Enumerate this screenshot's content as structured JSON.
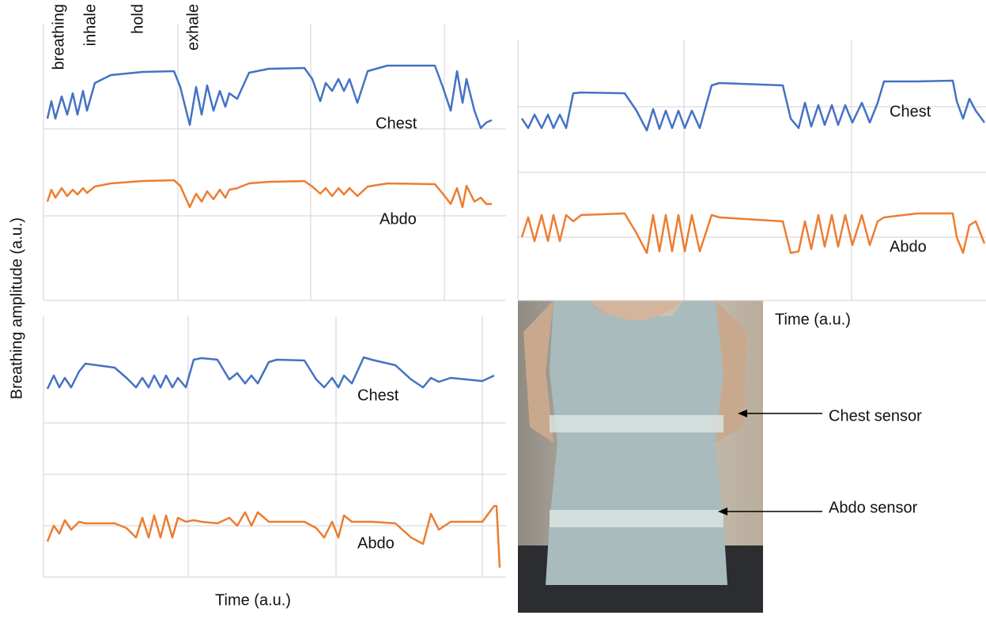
{
  "chart_data": [
    {
      "type": "line",
      "y_label": "Breathing amplitude (a.u.)",
      "annotations": [
        "breathing",
        "inhale",
        "hold",
        "exhale"
      ],
      "xlim": [
        0,
        585
      ],
      "ylim": [
        0,
        350
      ],
      "x": [
        5,
        10,
        15,
        23,
        30,
        37,
        43,
        50,
        55,
        65,
        85,
        125,
        165,
        173,
        185,
        193,
        200,
        207,
        215,
        223,
        230,
        235,
        245,
        260,
        285,
        330,
        340,
        350,
        357,
        365,
        373,
        380,
        387,
        397,
        410,
        435,
        495,
        505,
        515,
        523,
        530,
        535,
        545,
        553,
        560,
        567
      ],
      "series": [
        {
          "name": "Chest",
          "color": "#4472c4",
          "values": [
            230,
            252,
            230,
            258,
            235,
            262,
            235,
            265,
            240,
            275,
            285,
            289,
            290,
            270,
            222,
            270,
            235,
            272,
            240,
            265,
            245,
            262,
            255,
            288,
            293,
            294,
            280,
            252,
            275,
            265,
            280,
            265,
            280,
            250,
            290,
            297,
            297,
            270,
            240,
            290,
            250,
            280,
            240,
            218,
            225,
            228
          ]
        },
        {
          "name": "Abdo",
          "color": "#ed7d31",
          "values": [
            125,
            140,
            130,
            142,
            132,
            140,
            134,
            142,
            136,
            144,
            148,
            151,
            152,
            145,
            118,
            135,
            125,
            138,
            128,
            140,
            130,
            140,
            142,
            148,
            150,
            151,
            144,
            135,
            142,
            132,
            142,
            134,
            142,
            132,
            144,
            148,
            147,
            135,
            122,
            142,
            118,
            145,
            125,
            130,
            122,
            122
          ]
        }
      ]
    },
    {
      "type": "line",
      "x_label": "Time (a.u.)",
      "xlim": [
        0,
        592
      ],
      "ylim": [
        0,
        330
      ],
      "x": [
        5,
        13,
        21,
        30,
        38,
        45,
        53,
        61,
        70,
        80,
        135,
        150,
        163,
        171,
        179,
        187,
        195,
        203,
        211,
        220,
        230,
        245,
        255,
        335,
        345,
        355,
        363,
        371,
        380,
        388,
        397,
        405,
        414,
        423,
        435,
        445,
        455,
        463,
        505,
        550,
        555,
        563,
        571,
        579,
        590
      ],
      "series": [
        {
          "name": "Chest",
          "color": "#4472c4",
          "values": [
            230,
            218,
            235,
            218,
            235,
            218,
            235,
            218,
            262,
            263,
            262,
            240,
            215,
            242,
            217,
            240,
            218,
            240,
            218,
            240,
            218,
            272,
            275,
            272,
            230,
            218,
            250,
            220,
            247,
            222,
            247,
            222,
            247,
            225,
            250,
            225,
            250,
            277,
            277,
            278,
            252,
            230,
            255,
            240,
            225
          ]
        },
        {
          "name": "Abdo",
          "color": "#ed7d31",
          "values": [
            80,
            105,
            75,
            108,
            75,
            108,
            75,
            108,
            100,
            108,
            110,
            85,
            60,
            108,
            62,
            108,
            62,
            108,
            62,
            108,
            62,
            108,
            105,
            100,
            60,
            62,
            100,
            65,
            108,
            68,
            108,
            68,
            108,
            70,
            108,
            70,
            100,
            105,
            110,
            110,
            80,
            60,
            95,
            100,
            72
          ]
        }
      ]
    },
    {
      "type": "line",
      "x_label": "Time (a.u.)",
      "xlim": [
        0,
        585
      ],
      "ylim": [
        0,
        330
      ],
      "x": [
        5,
        13,
        20,
        27,
        35,
        45,
        53,
        90,
        105,
        117,
        125,
        133,
        140,
        148,
        155,
        163,
        170,
        180,
        190,
        200,
        220,
        235,
        245,
        255,
        263,
        271,
        285,
        295,
        330,
        345,
        355,
        365,
        373,
        380,
        390,
        405,
        415,
        445,
        465,
        480,
        490,
        500,
        515,
        535,
        555,
        570,
        573,
        577
      ],
      "series": [
        {
          "name": "Chest",
          "color": "#4472c4",
          "values": [
            238,
            255,
            240,
            252,
            240,
            260,
            270,
            265,
            252,
            240,
            252,
            240,
            255,
            240,
            255,
            240,
            252,
            240,
            275,
            277,
            275,
            250,
            258,
            245,
            255,
            245,
            272,
            275,
            274,
            250,
            240,
            252,
            240,
            255,
            245,
            278,
            275,
            268,
            250,
            240,
            252,
            247,
            252,
            250,
            248,
            255,
            null,
            null
          ]
        },
        {
          "name": "Abdo",
          "color": "#ed7d31",
          "values": [
            45,
            65,
            55,
            72,
            60,
            70,
            68,
            68,
            62,
            50,
            75,
            50,
            78,
            50,
            78,
            50,
            75,
            70,
            72,
            70,
            68,
            75,
            65,
            82,
            65,
            82,
            70,
            70,
            70,
            62,
            50,
            70,
            50,
            78,
            70,
            70,
            70,
            68,
            50,
            42,
            80,
            60,
            70,
            70,
            70,
            90,
            90,
            12
          ]
        }
      ]
    }
  ],
  "photo": {
    "chest_sensor": "Chest sensor",
    "abdo_sensor": "Abdo sensor"
  }
}
